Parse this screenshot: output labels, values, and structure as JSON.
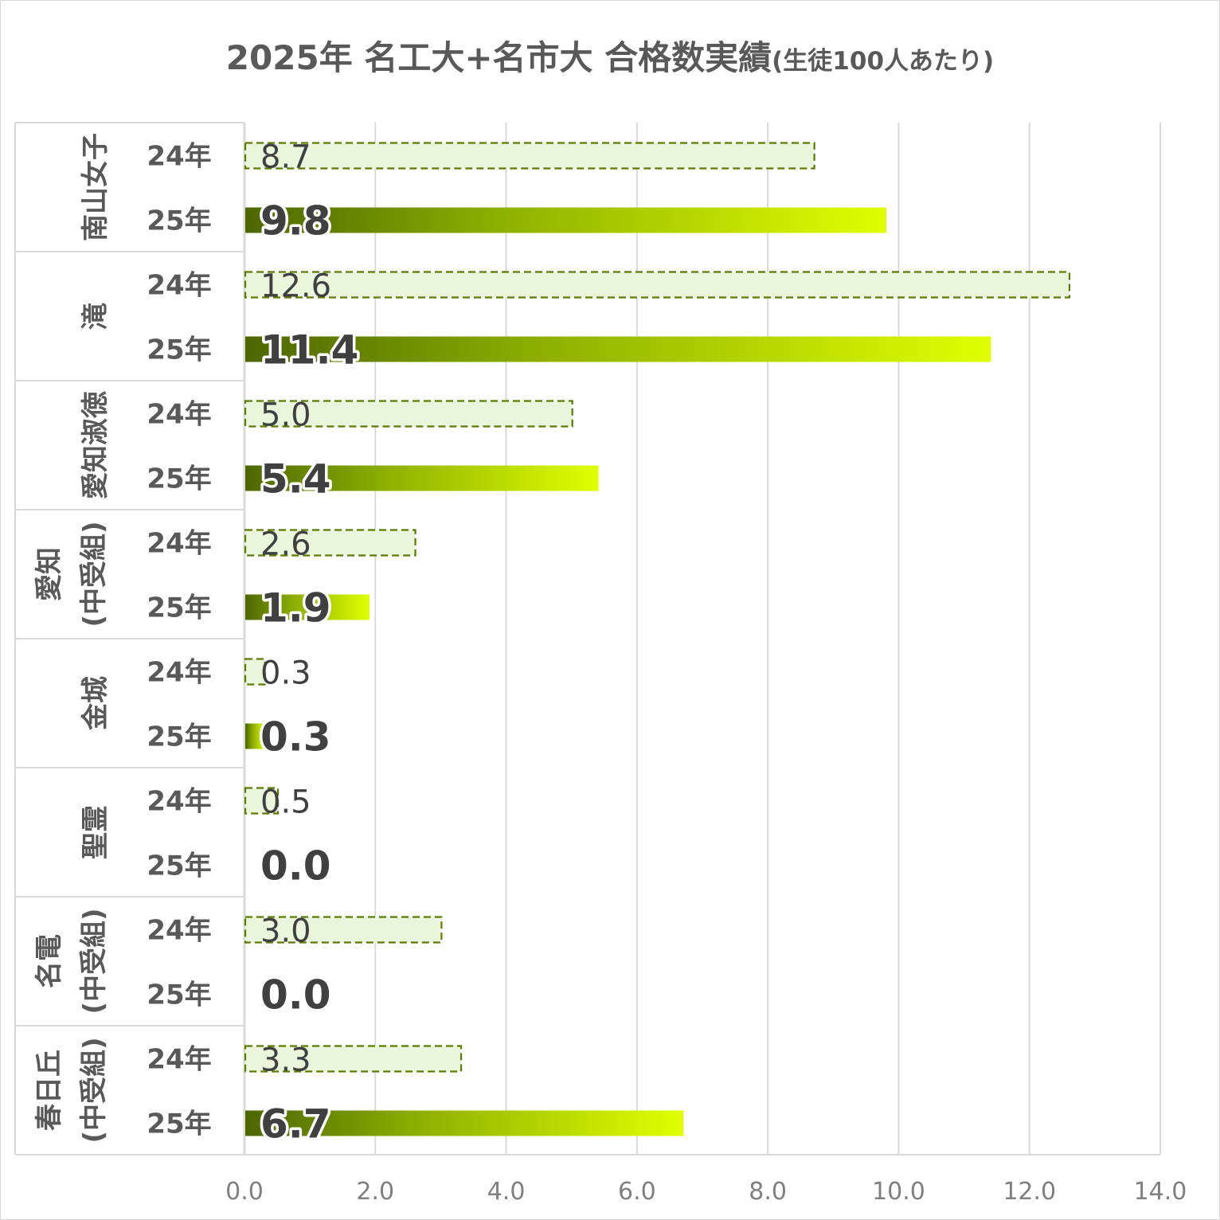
{
  "chart_data": {
    "type": "bar",
    "orientation": "horizontal",
    "title": "2025年 名工大+名市大 合格数実績",
    "subtitle": "(生徒100人あたり)",
    "xlabel": "",
    "ylabel": "",
    "xlim": [
      0,
      14
    ],
    "x_ticks": [
      "0.0",
      "2.0",
      "4.0",
      "6.0",
      "8.0",
      "10.0",
      "12.0",
      "14.0"
    ],
    "grid": true,
    "legend": "none",
    "series": [
      {
        "name": "24年",
        "style": "dashed-outline"
      },
      {
        "name": "25年",
        "style": "gradient"
      }
    ],
    "groups": [
      {
        "label_lines": [
          "南山女子"
        ],
        "bars": [
          {
            "year": "24年",
            "value": 8.7,
            "label": "8.7"
          },
          {
            "year": "25年",
            "value": 9.8,
            "label": "9.8"
          }
        ]
      },
      {
        "label_lines": [
          "滝"
        ],
        "bars": [
          {
            "year": "24年",
            "value": 12.6,
            "label": "12.6"
          },
          {
            "year": "25年",
            "value": 11.4,
            "label": "11.4"
          }
        ]
      },
      {
        "label_lines": [
          "愛知淑徳"
        ],
        "bars": [
          {
            "year": "24年",
            "value": 5.0,
            "label": "5.0"
          },
          {
            "year": "25年",
            "value": 5.4,
            "label": "5.4"
          }
        ]
      },
      {
        "label_lines": [
          "愛知",
          "(中受組)"
        ],
        "bars": [
          {
            "year": "24年",
            "value": 2.6,
            "label": "2.6"
          },
          {
            "year": "25年",
            "value": 1.9,
            "label": "1.9"
          }
        ]
      },
      {
        "label_lines": [
          "金城"
        ],
        "bars": [
          {
            "year": "24年",
            "value": 0.3,
            "label": "0.3"
          },
          {
            "year": "25年",
            "value": 0.3,
            "label": "0.3"
          }
        ]
      },
      {
        "label_lines": [
          "聖霊"
        ],
        "bars": [
          {
            "year": "24年",
            "value": 0.5,
            "label": "0.5"
          },
          {
            "year": "25年",
            "value": 0.0,
            "label": "0.0"
          }
        ]
      },
      {
        "label_lines": [
          "名電",
          "(中受組)"
        ],
        "bars": [
          {
            "year": "24年",
            "value": 3.0,
            "label": "3.0"
          },
          {
            "year": "25年",
            "value": 0.0,
            "label": "0.0"
          }
        ]
      },
      {
        "label_lines": [
          "春日丘",
          "(中受組)"
        ],
        "bars": [
          {
            "year": "24年",
            "value": 3.3,
            "label": "3.3"
          },
          {
            "year": "25年",
            "value": 6.7,
            "label": "6.7"
          }
        ]
      }
    ],
    "colors": {
      "bar24_fill": "#ebf5dc",
      "bar24_stroke": "#5a7a00",
      "bar25_start": "#4d6600",
      "bar25_mid": "#8fb000",
      "bar25_end": "#dfff00",
      "gridline": "#d9d9d9",
      "axis": "#d9d9d9"
    }
  }
}
